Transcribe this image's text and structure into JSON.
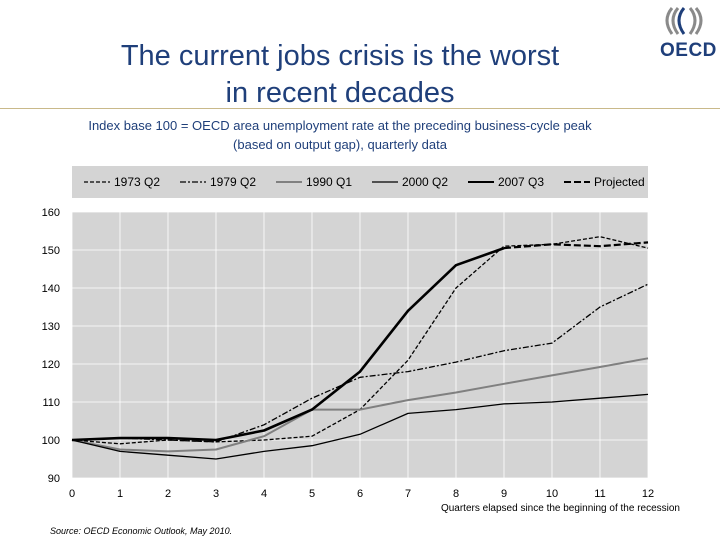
{
  "title_line1": "The current jobs crisis is the worst",
  "title_line2": "in recent decades",
  "subtitle_line1": "Index base 100 = OECD area unemployment rate at the preceding business-cycle peak",
  "subtitle_line2": "(based on output gap), quarterly data",
  "logo_text": "OECD",
  "source": "Source: OECD Economic Outlook, May 2010.",
  "colors": {
    "title": "#1f3f7a",
    "plot_bg": "#d4d4d4",
    "legend_bg": "#d4d4d4",
    "grid": "#ffffff"
  },
  "chart_data": {
    "type": "line",
    "title": "",
    "xlabel": "Quarters elapsed since the beginning of the recession",
    "ylabel": "",
    "xlim": [
      0,
      12
    ],
    "ylim": [
      90,
      160
    ],
    "xticks": [
      0,
      1,
      2,
      3,
      4,
      5,
      6,
      7,
      8,
      9,
      10,
      11,
      12
    ],
    "yticks": [
      90,
      100,
      110,
      120,
      130,
      140,
      150,
      160
    ],
    "legend": [
      {
        "name": "1973 Q2",
        "key": "s1973",
        "color": "#000000",
        "dash": "4,2",
        "width": 1.3
      },
      {
        "name": "1979 Q2",
        "key": "s1979",
        "color": "#000000",
        "dash": "6,2,2,2",
        "width": 1.3
      },
      {
        "name": "1990 Q1",
        "key": "s1990",
        "color": "#808080",
        "dash": "",
        "width": 2
      },
      {
        "name": "2000 Q2",
        "key": "s2000",
        "color": "#000000",
        "dash": "",
        "width": 1.3
      },
      {
        "name": "2007 Q3",
        "key": "s2007",
        "color": "#000000",
        "dash": "",
        "width": 2.6
      },
      {
        "name": "Projected",
        "key": "proj",
        "color": "#000000",
        "dash": "7,3",
        "width": 2.2
      }
    ],
    "series": [
      {
        "key": "s1973",
        "name": "1973 Q2",
        "x": [
          0,
          1,
          2,
          3,
          4,
          5,
          6,
          7,
          8,
          9,
          10,
          11,
          12
        ],
        "values": [
          100,
          99,
          100,
          99.5,
          100,
          101,
          108,
          121,
          140,
          151,
          151.5,
          153.5,
          150.5
        ]
      },
      {
        "key": "s1979",
        "name": "1979 Q2",
        "x": [
          0,
          1,
          2,
          3,
          4,
          5,
          6,
          7,
          8,
          9,
          10,
          11,
          12
        ],
        "values": [
          100,
          100.5,
          100,
          99.5,
          104,
          111,
          116.5,
          118,
          120.5,
          123.5,
          125.5,
          135,
          141
        ]
      },
      {
        "key": "s1990",
        "name": "1990 Q1",
        "x": [
          0,
          1,
          2,
          3,
          4,
          5,
          6,
          7,
          8,
          9,
          10,
          11,
          12
        ],
        "values": [
          100,
          97.5,
          97,
          97.5,
          101,
          108,
          108,
          110.5,
          112.5,
          114.8,
          117,
          119.2,
          121.5
        ]
      },
      {
        "key": "s2000",
        "name": "2000 Q2",
        "x": [
          0,
          1,
          2,
          3,
          4,
          5,
          6,
          7,
          8,
          9,
          10,
          11,
          12
        ],
        "values": [
          100,
          97,
          96,
          95,
          97,
          98.5,
          101.5,
          107,
          108,
          109.5,
          110,
          111,
          112
        ]
      },
      {
        "key": "s2007",
        "name": "2007 Q3",
        "x": [
          0,
          1,
          2,
          3,
          4,
          5,
          6,
          7,
          8,
          9
        ],
        "values": [
          100,
          100.5,
          100.5,
          100,
          102.5,
          108,
          118,
          134,
          146,
          150.5
        ]
      },
      {
        "key": "proj",
        "name": "Projected",
        "x": [
          9,
          10,
          11,
          12
        ],
        "values": [
          150.5,
          151.5,
          151,
          152
        ]
      }
    ]
  }
}
